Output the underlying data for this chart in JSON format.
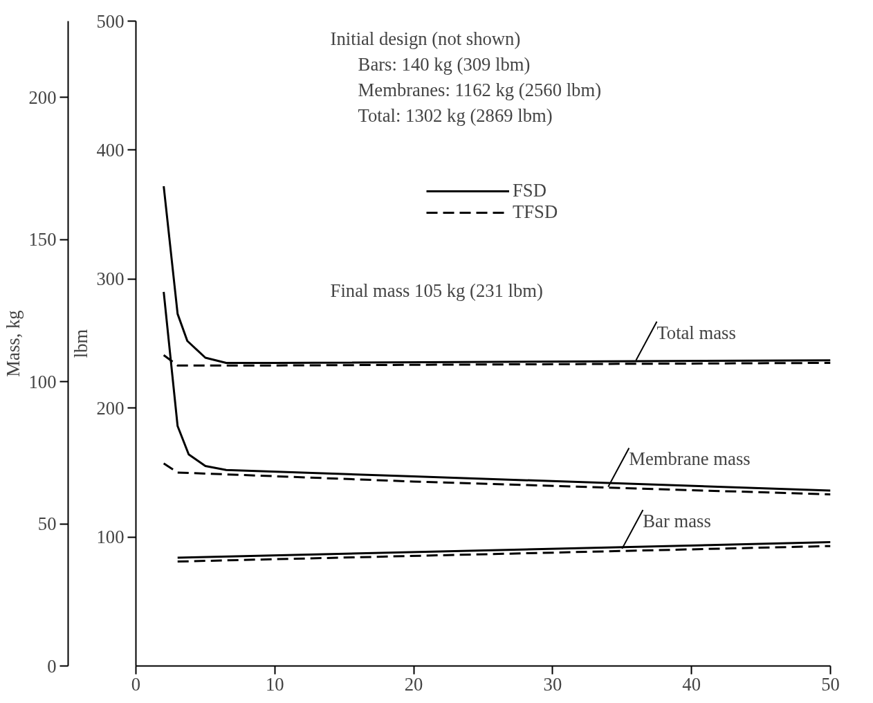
{
  "chart_data": {
    "type": "line",
    "ylabel": "lbm",
    "y2label": "Mass, kg",
    "xlim": [
      0,
      50
    ],
    "xticks": [
      0,
      10,
      20,
      30,
      40,
      50
    ],
    "ylim": [
      0,
      500
    ],
    "yticks": [
      100,
      200,
      300,
      400,
      500
    ],
    "y2lim": [
      0,
      226.8
    ],
    "y2ticks": [
      0,
      50,
      100,
      150,
      200
    ],
    "grid": false,
    "legend": "top",
    "marker": "none",
    "series": [
      {
        "name": "FSD",
        "color": "#000000",
        "line_style": "solid",
        "x": [
          2,
          3,
          3.7,
          5,
          6.5,
          10,
          50
        ],
        "values": [
          372,
          273,
          252,
          239,
          235,
          235,
          237
        ]
      },
      {
        "name": "TFSD",
        "color": "#000000",
        "line_style": "dashed",
        "x": [
          2,
          3,
          10,
          50
        ],
        "values": [
          241,
          233,
          233,
          235
        ]
      },
      {
        "color": "#000000",
        "line_style": "solid",
        "x": [
          2,
          3,
          3.8,
          5,
          6.5,
          20,
          50
        ],
        "values": [
          290,
          186,
          164,
          155,
          152,
          147,
          136
        ]
      },
      {
        "color": "#000000",
        "line_style": "dashed",
        "x": [
          2,
          3,
          20,
          50
        ],
        "values": [
          157,
          150,
          143,
          133
        ]
      },
      {
        "color": "#000000",
        "line_style": "solid",
        "x": [
          3,
          50
        ],
        "values": [
          84,
          96
        ]
      },
      {
        "color": "#000000",
        "line_style": "dashed",
        "x": [
          3,
          50
        ],
        "values": [
          81,
          93
        ]
      }
    ],
    "annotations": [
      "Initial design (not shown)",
      "Bars: 140 kg (309 lbm)",
      "Membranes: 1162 kg (2560 lbm)",
      "Total: 1302 kg (2869 lbm)",
      "Final mass 105 kg (231 lbm)",
      {
        "text": "Total mass",
        "x": 36,
        "y": 237
      },
      {
        "text": "Membrane mass",
        "x": 34,
        "y": 139
      },
      {
        "text": "Bar mass",
        "x": 35,
        "y": 91
      }
    ]
  }
}
